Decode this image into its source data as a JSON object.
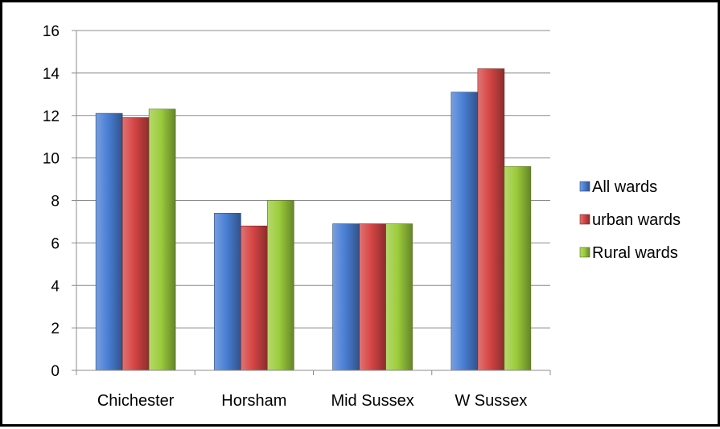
{
  "chart_data": {
    "type": "bar",
    "categories": [
      "Chichester",
      "Horsham",
      "Mid Sussex",
      "W Sussex"
    ],
    "series": [
      {
        "name": "All wards",
        "values": [
          12.1,
          7.4,
          6.9,
          13.1
        ]
      },
      {
        "name": "urban wards",
        "values": [
          11.9,
          6.8,
          6.9,
          14.2
        ]
      },
      {
        "name": "Rural wards",
        "values": [
          12.3,
          8.0,
          6.9,
          9.6
        ]
      }
    ],
    "ylim": [
      0,
      16
    ],
    "yticks": [
      "0",
      "2",
      "4",
      "6",
      "8",
      "10",
      "12",
      "14",
      "16"
    ],
    "grid": true,
    "legend_position": "right",
    "colors": {
      "All wards": "#4a7fd4",
      "urban wards": "#d64545",
      "Rural wards": "#9ccc3c"
    }
  }
}
